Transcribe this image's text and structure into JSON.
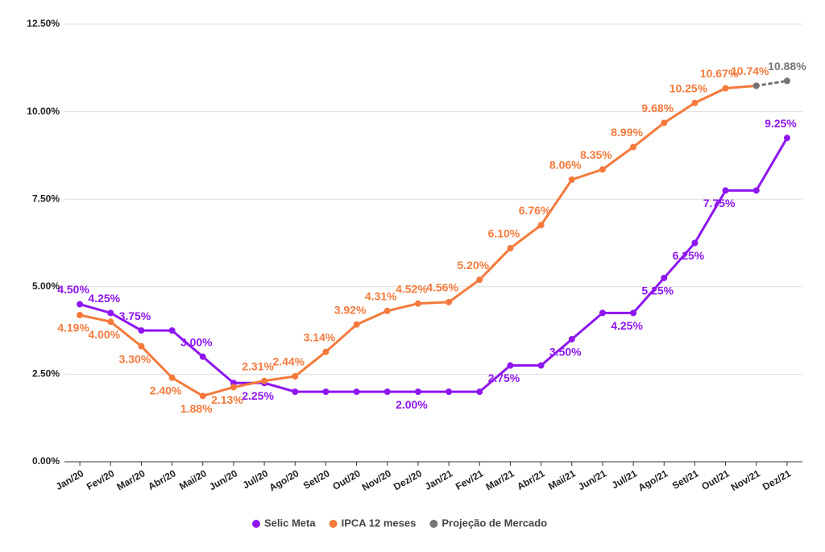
{
  "chart_data": {
    "type": "line",
    "categories": [
      "Jan/20",
      "Fev/20",
      "Mar/20",
      "Abr/20",
      "Mai/20",
      "Jun/20",
      "Jul/20",
      "Ago/20",
      "Set/20",
      "Out/20",
      "Nov/20",
      "Dez/20",
      "Jan/21",
      "Fev/21",
      "Mar/21",
      "Abr/21",
      "Mai/21",
      "Jun/21",
      "Jul/21",
      "Ago/21",
      "Set/21",
      "Out/21",
      "Nov/21",
      "Dez/21"
    ],
    "series": [
      {
        "name": "Selic Meta",
        "color": "#8e16ef",
        "values": [
          4.5,
          4.25,
          3.75,
          3.75,
          3.0,
          2.25,
          2.25,
          2.0,
          2.0,
          2.0,
          2.0,
          2.0,
          2.0,
          2.0,
          2.75,
          2.75,
          3.5,
          4.25,
          4.25,
          5.25,
          6.25,
          7.75,
          7.75,
          9.25
        ],
        "value_labels": [
          "4.50%",
          "4.25%",
          "3.75%",
          null,
          "3.00%",
          null,
          "2.25%",
          null,
          null,
          null,
          null,
          "2.00%",
          null,
          null,
          "2.75%",
          null,
          "3.50%",
          null,
          "4.25%",
          "5.25%",
          "6.25%",
          "7.75%",
          null,
          "9.25%"
        ]
      },
      {
        "name": "IPCA 12 meses",
        "color": "#f47a3c",
        "values": [
          4.19,
          4.0,
          3.3,
          2.4,
          1.88,
          2.13,
          2.31,
          2.44,
          3.14,
          3.92,
          4.31,
          4.52,
          4.56,
          5.2,
          6.1,
          6.76,
          8.06,
          8.35,
          8.99,
          9.68,
          10.25,
          10.67,
          10.74,
          null
        ],
        "value_labels": [
          "4.19%",
          "4.00%",
          "3.30%",
          "2.40%",
          "1.88%",
          "2.13%",
          "2.31%",
          "2.44%",
          "3.14%",
          "3.92%",
          "4.31%",
          "4.52%",
          "4.56%",
          "5.20%",
          "6.10%",
          "6.76%",
          "8.06%",
          "8.35%",
          "8.99%",
          "9.68%",
          "10.25%",
          "10.67%",
          "10.74%",
          null
        ]
      },
      {
        "name": "Projeção de Mercado",
        "color": "#747474",
        "dashed": true,
        "values": [
          null,
          null,
          null,
          null,
          null,
          null,
          null,
          null,
          null,
          null,
          null,
          null,
          null,
          null,
          null,
          null,
          null,
          null,
          null,
          null,
          null,
          null,
          10.74,
          10.88
        ],
        "value_labels": [
          null,
          null,
          null,
          null,
          null,
          null,
          null,
          null,
          null,
          null,
          null,
          null,
          null,
          null,
          null,
          null,
          null,
          null,
          null,
          null,
          null,
          null,
          null,
          "10.88%"
        ]
      }
    ],
    "ylim": [
      0,
      12.5
    ],
    "yticks": [
      {
        "value": 0,
        "label": "0.00%"
      },
      {
        "value": 2.5,
        "label": "2.50%"
      },
      {
        "value": 5,
        "label": "5.00%"
      },
      {
        "value": 7.5,
        "label": "7.50%"
      },
      {
        "value": 10,
        "label": "10.00%"
      },
      {
        "value": 12.5,
        "label": "12.50%"
      }
    ],
    "grid": true,
    "legend": "bottom"
  }
}
